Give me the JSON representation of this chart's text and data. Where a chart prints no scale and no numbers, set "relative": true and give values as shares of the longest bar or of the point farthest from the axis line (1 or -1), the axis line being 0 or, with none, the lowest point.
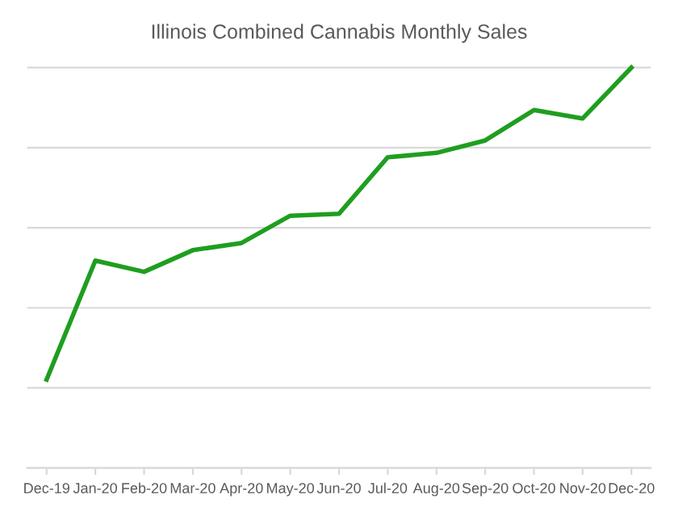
{
  "chart_data": {
    "type": "line",
    "title": "Illinois Combined Cannabis Monthly Sales",
    "categories": [
      "Dec-19",
      "Jan-20",
      "Feb-20",
      "Mar-20",
      "Apr-20",
      "May-20",
      "Jun-20",
      "Jul-20",
      "Aug-20",
      "Sep-20",
      "Oct-20",
      "Nov-20",
      "Dec-20"
    ],
    "series": [
      {
        "color": "#1f9e1f",
        "values": [
          0.221,
          0.518,
          0.49,
          0.544,
          0.562,
          0.63,
          0.635,
          0.776,
          0.787,
          0.818,
          0.894,
          0.873,
          1.0
        ]
      }
    ],
    "relative": true,
    "grid": "y",
    "legend": false,
    "marker": "none",
    "line_style": "solid"
  }
}
